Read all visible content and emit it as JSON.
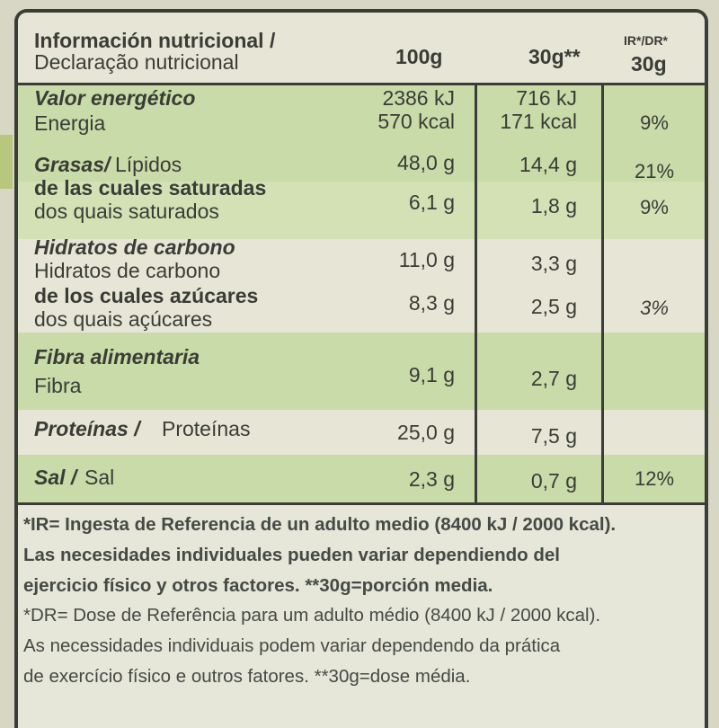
{
  "header": {
    "title_es": "Información nutricional /",
    "title_pt": "Declaração nutricional",
    "col_100g": "100g",
    "col_30g": "30g**",
    "col_ir_top": "IR*/DR*",
    "col_ir_bottom": "30g"
  },
  "rows": [
    {
      "label_es": "Valor energético",
      "label_pt": "Energia",
      "v100_a": "2386 kJ",
      "v100_b": "570 kcal",
      "v30_a": "716 kJ",
      "v30_b": "171 kcal",
      "ir": "9%"
    },
    {
      "label_es": "Grasas/",
      "label_pt": "Lípidos",
      "v100": "48,0 g",
      "v30": "14,4 g",
      "ir": "21%"
    },
    {
      "label_es": "de las cuales saturadas",
      "label_pt": "dos quais saturados",
      "v100": "6,1 g",
      "v30": "1,8 g",
      "ir": "9%"
    },
    {
      "label_es": "Hidratos de carbono",
      "label_pt": "Hidratos de carbono",
      "v100": "11,0 g",
      "v30": "3,3 g",
      "ir": ""
    },
    {
      "label_es": "de los cuales azúcares",
      "label_pt": "dos quais açúcares",
      "v100": "8,3 g",
      "v30": "2,5 g",
      "ir": "3%"
    },
    {
      "label_es": "Fibra alimentaria",
      "label_pt": "Fibra",
      "v100": "9,1 g",
      "v30": "2,7 g",
      "ir": ""
    },
    {
      "label_es": "Proteínas /",
      "label_pt": "Proteínas",
      "v100": "25,0 g",
      "v30": "7,5 g",
      "ir": ""
    },
    {
      "label_es": "Sal /",
      "label_pt": "Sal",
      "v100": "2,3 g",
      "v30": "0,7 g",
      "ir": "12%"
    }
  ],
  "footnotes": [
    "*IR= Ingesta de Referencia de un adulto medio (8400 kJ / 2000 kcal).",
    "Las necesidades individuales pueden variar dependiendo del",
    "ejercicio físico y otros factores. **30g=porción media.",
    "*DR= Dose de Referência para um adulto médio (8400 kJ / 2000 kcal).",
    "As necessidades individuais podem variar dependendo da prática",
    "de exercício físico e outros fatores. **30g=dose média."
  ],
  "colors": {
    "green_band": "#c9dba8",
    "panel_bg": "#e4e3d3",
    "ink": "#3b3e37"
  }
}
